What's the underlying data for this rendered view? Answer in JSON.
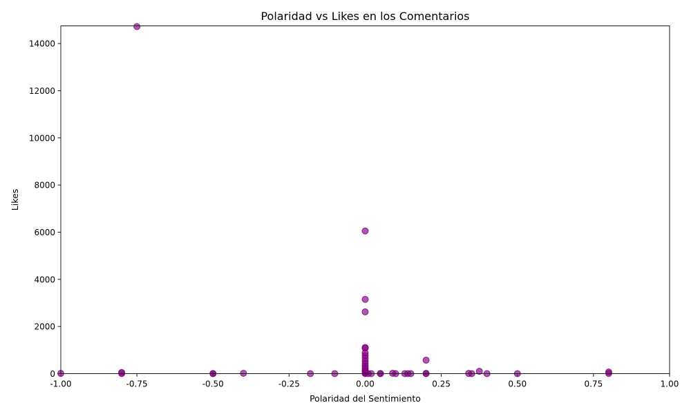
{
  "chart_data": {
    "type": "scatter",
    "title": "Polaridad vs Likes en los Comentarios",
    "xlabel": "Polaridad del Sentimiento",
    "ylabel": "Likes",
    "xlim": [
      -1.0,
      1.0
    ],
    "ylim": [
      0,
      14750
    ],
    "grid": false,
    "x_ticks": [
      "-1.00",
      "-0.75",
      "-0.50",
      "-0.25",
      "0.00",
      "0.25",
      "0.50",
      "0.75",
      "1.00"
    ],
    "y_ticks": [
      "0",
      "2000",
      "4000",
      "6000",
      "8000",
      "10000",
      "12000",
      "14000"
    ],
    "marker_color": "#800080",
    "marker_alpha": 0.65,
    "points": [
      {
        "x": -0.75,
        "y": 14720
      },
      {
        "x": 0.0,
        "y": 6050
      },
      {
        "x": 0.0,
        "y": 3150
      },
      {
        "x": 0.0,
        "y": 2620
      },
      {
        "x": 0.0,
        "y": 1110
      },
      {
        "x": 0.0,
        "y": 1080
      },
      {
        "x": 0.0,
        "y": 880
      },
      {
        "x": 0.0,
        "y": 770
      },
      {
        "x": 0.0,
        "y": 650
      },
      {
        "x": 0.0,
        "y": 530
      },
      {
        "x": 0.0,
        "y": 420
      },
      {
        "x": 0.0,
        "y": 320
      },
      {
        "x": 0.0,
        "y": 230
      },
      {
        "x": 0.0,
        "y": 150
      },
      {
        "x": 0.0,
        "y": 80
      },
      {
        "x": 0.0,
        "y": 30
      },
      {
        "x": 0.0,
        "y": 5
      },
      {
        "x": 0.2,
        "y": 570
      },
      {
        "x": -1.0,
        "y": 10
      },
      {
        "x": -0.8,
        "y": 50
      },
      {
        "x": -0.8,
        "y": 5
      },
      {
        "x": -0.5,
        "y": 5
      },
      {
        "x": -0.5,
        "y": 0
      },
      {
        "x": -0.4,
        "y": 15
      },
      {
        "x": -0.18,
        "y": 0
      },
      {
        "x": -0.1,
        "y": 0
      },
      {
        "x": 0.01,
        "y": 0
      },
      {
        "x": 0.02,
        "y": 0
      },
      {
        "x": 0.05,
        "y": 0
      },
      {
        "x": 0.05,
        "y": 5
      },
      {
        "x": 0.09,
        "y": 15
      },
      {
        "x": 0.1,
        "y": 0
      },
      {
        "x": 0.13,
        "y": 0
      },
      {
        "x": 0.14,
        "y": 0
      },
      {
        "x": 0.15,
        "y": 0
      },
      {
        "x": 0.2,
        "y": 0
      },
      {
        "x": 0.2,
        "y": 10
      },
      {
        "x": 0.34,
        "y": 10
      },
      {
        "x": 0.35,
        "y": 0
      },
      {
        "x": 0.375,
        "y": 100
      },
      {
        "x": 0.4,
        "y": 0
      },
      {
        "x": 0.5,
        "y": 0
      },
      {
        "x": 0.8,
        "y": 70
      },
      {
        "x": 0.8,
        "y": 10
      }
    ]
  }
}
